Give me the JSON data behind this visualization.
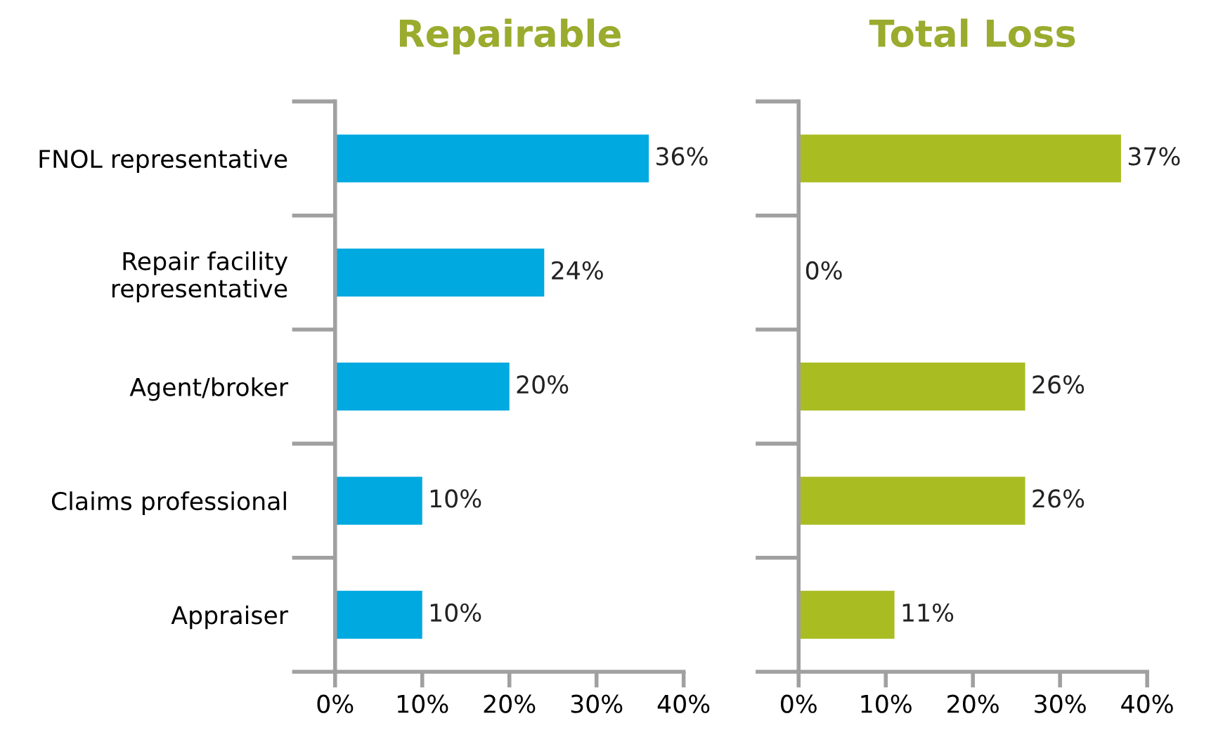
{
  "chart_data": [
    {
      "type": "bar",
      "orientation": "horizontal",
      "title": "Repairable",
      "categories": [
        "FNOL representative",
        "Repair facility\nrepresentative",
        "Agent/broker",
        "Claims professional",
        "Appraiser"
      ],
      "values": [
        36,
        24,
        20,
        10,
        10
      ],
      "color": "#00a9e0",
      "value_labels": [
        "36%",
        "24%",
        "20%",
        "10%",
        "10%"
      ],
      "xlim": [
        0,
        40
      ],
      "xticks": [
        {
          "value": 0,
          "label": "0%"
        },
        {
          "value": 10,
          "label": "10%"
        },
        {
          "value": 20,
          "label": "20%"
        },
        {
          "value": 30,
          "label": "30%"
        },
        {
          "value": 40,
          "label": "40%"
        }
      ],
      "grid": false,
      "legend": false
    },
    {
      "type": "bar",
      "orientation": "horizontal",
      "title": "Total Loss",
      "categories": [
        null,
        null,
        null,
        null,
        null
      ],
      "values": [
        37,
        0,
        26,
        26,
        11
      ],
      "color": "#a9bd22",
      "value_labels": [
        "37%",
        "0%",
        "26%",
        "26%",
        "11%"
      ],
      "xlim": [
        0,
        40
      ],
      "xticks": [
        {
          "value": 0,
          "label": "0%"
        },
        {
          "value": 10,
          "label": "10%"
        },
        {
          "value": 20,
          "label": "20%"
        },
        {
          "value": 30,
          "label": "30%"
        },
        {
          "value": 40,
          "label": "40%"
        }
      ],
      "grid": false,
      "legend": false,
      "tick_labels": "x"
    }
  ]
}
